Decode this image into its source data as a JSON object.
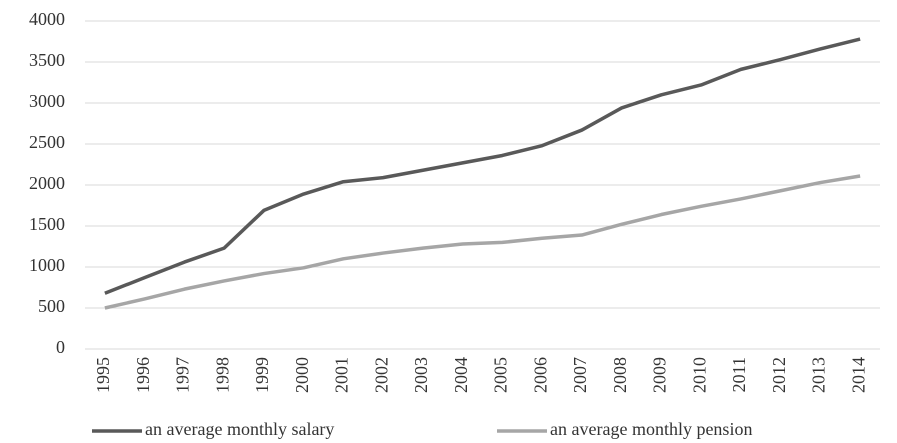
{
  "chart_data": {
    "type": "line",
    "categories": [
      "1995",
      "1996",
      "1997",
      "1998",
      "1999",
      "2000",
      "2001",
      "2002",
      "2003",
      "2004",
      "2005",
      "2006",
      "2007",
      "2008",
      "2009",
      "2010",
      "2011",
      "2012",
      "2013",
      "2014"
    ],
    "series": [
      {
        "name": "an average monthly salary",
        "color": "#595959",
        "values": [
          680,
          870,
          1060,
          1230,
          1690,
          1890,
          2040,
          2090,
          2180,
          2270,
          2360,
          2480,
          2670,
          2940,
          3100,
          3220,
          3410,
          3530,
          3660,
          3780
        ]
      },
      {
        "name": "an average monthly pension",
        "color": "#a6a6a6",
        "values": [
          500,
          610,
          730,
          830,
          920,
          990,
          1100,
          1170,
          1230,
          1280,
          1300,
          1350,
          1390,
          1520,
          1640,
          1740,
          1830,
          1930,
          2030,
          2110
        ]
      }
    ],
    "ylim": [
      0,
      4000
    ],
    "yticks": [
      0,
      500,
      1000,
      1500,
      2000,
      2500,
      3000,
      3500,
      4000
    ],
    "grid": true,
    "legend": "bottom"
  }
}
